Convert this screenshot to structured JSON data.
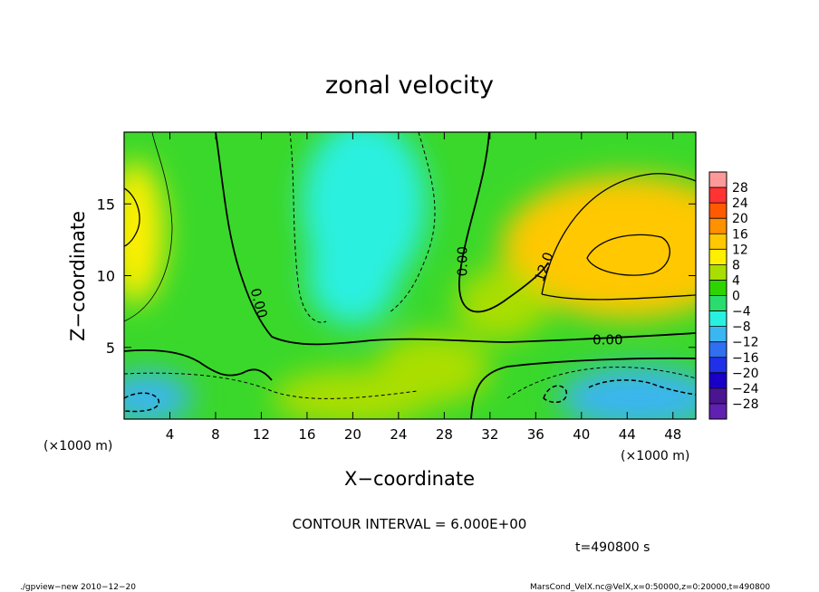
{
  "chart_data": {
    "type": "heatmap",
    "title": "zonal velocity",
    "xlabel": "X−coordinate",
    "ylabel": "Z−coordinate",
    "x_unit_left": "(×1000 m)",
    "x_unit_right": "(×1000 m)",
    "xlim": [
      0,
      50
    ],
    "ylim": [
      0,
      20
    ],
    "x_ticks": [
      4,
      8,
      12,
      16,
      20,
      24,
      28,
      32,
      36,
      40,
      44,
      48
    ],
    "y_ticks": [
      5,
      10,
      15
    ],
    "contour_labels": [
      {
        "text": "0.00",
        "x": 30.0,
        "y": 11.0,
        "rotate": -90
      },
      {
        "text": "0.00",
        "x": 11.4,
        "y": 8.0,
        "rotate": 75
      },
      {
        "text": "0.00",
        "x": 42.3,
        "y": 5.2,
        "rotate": 0
      },
      {
        "text": "12.0",
        "x": 37.1,
        "y": 10.5,
        "rotate": -70
      }
    ],
    "contour_interval": 6.0,
    "colorbar": {
      "levels": [
        "28",
        "24",
        "20",
        "16",
        "12",
        "8",
        "4",
        "0",
        "−4",
        "−8",
        "−12",
        "−16",
        "−20",
        "−24",
        "−28"
      ],
      "colors": [
        "#ff9999",
        "#ff3333",
        "#ff5a00",
        "#ff9000",
        "#ffc800",
        "#ffef00",
        "#aade00",
        "#2ed400",
        "#2adc6e",
        "#2af0e0",
        "#3ab6f0",
        "#3070f0",
        "#2030e8",
        "#1800c8",
        "#4a1590",
        "#6020b0"
      ]
    },
    "field_blobs": [
      {
        "x": 45,
        "y": 12,
        "rx": 7,
        "ry": 3,
        "value": 22
      },
      {
        "x": 44,
        "y": 12,
        "rx": 11,
        "ry": 5,
        "value": 14
      },
      {
        "x": 1,
        "y": 13,
        "rx": 2.5,
        "ry": 5,
        "value": 10
      },
      {
        "x": 21,
        "y": 15,
        "rx": 5.5,
        "ry": 6,
        "value": -7
      },
      {
        "x": 20,
        "y": 10,
        "rx": 4,
        "ry": 3.5,
        "value": -6
      },
      {
        "x": 45,
        "y": 1.5,
        "rx": 7,
        "ry": 2.2,
        "value": -11
      },
      {
        "x": 2,
        "y": 1.5,
        "rx": 4,
        "ry": 1.8,
        "value": -8
      },
      {
        "x": 20,
        "y": 1.5,
        "rx": 7,
        "ry": 2,
        "value": 7
      },
      {
        "x": 27,
        "y": 3.5,
        "rx": 5,
        "ry": 2.5,
        "value": 5
      },
      {
        "x": 33,
        "y": 8,
        "rx": 4,
        "ry": 2.5,
        "value": 6
      }
    ]
  },
  "footer": {
    "contour_interval_text": "CONTOUR INTERVAL = 6.000E+00",
    "time_text": "t=490800 s",
    "program_text": "./gpview−new   2010−12−20",
    "file_text": "MarsCond_VelX.nc@VelX,x=0:50000,z=0:20000,t=490800"
  }
}
